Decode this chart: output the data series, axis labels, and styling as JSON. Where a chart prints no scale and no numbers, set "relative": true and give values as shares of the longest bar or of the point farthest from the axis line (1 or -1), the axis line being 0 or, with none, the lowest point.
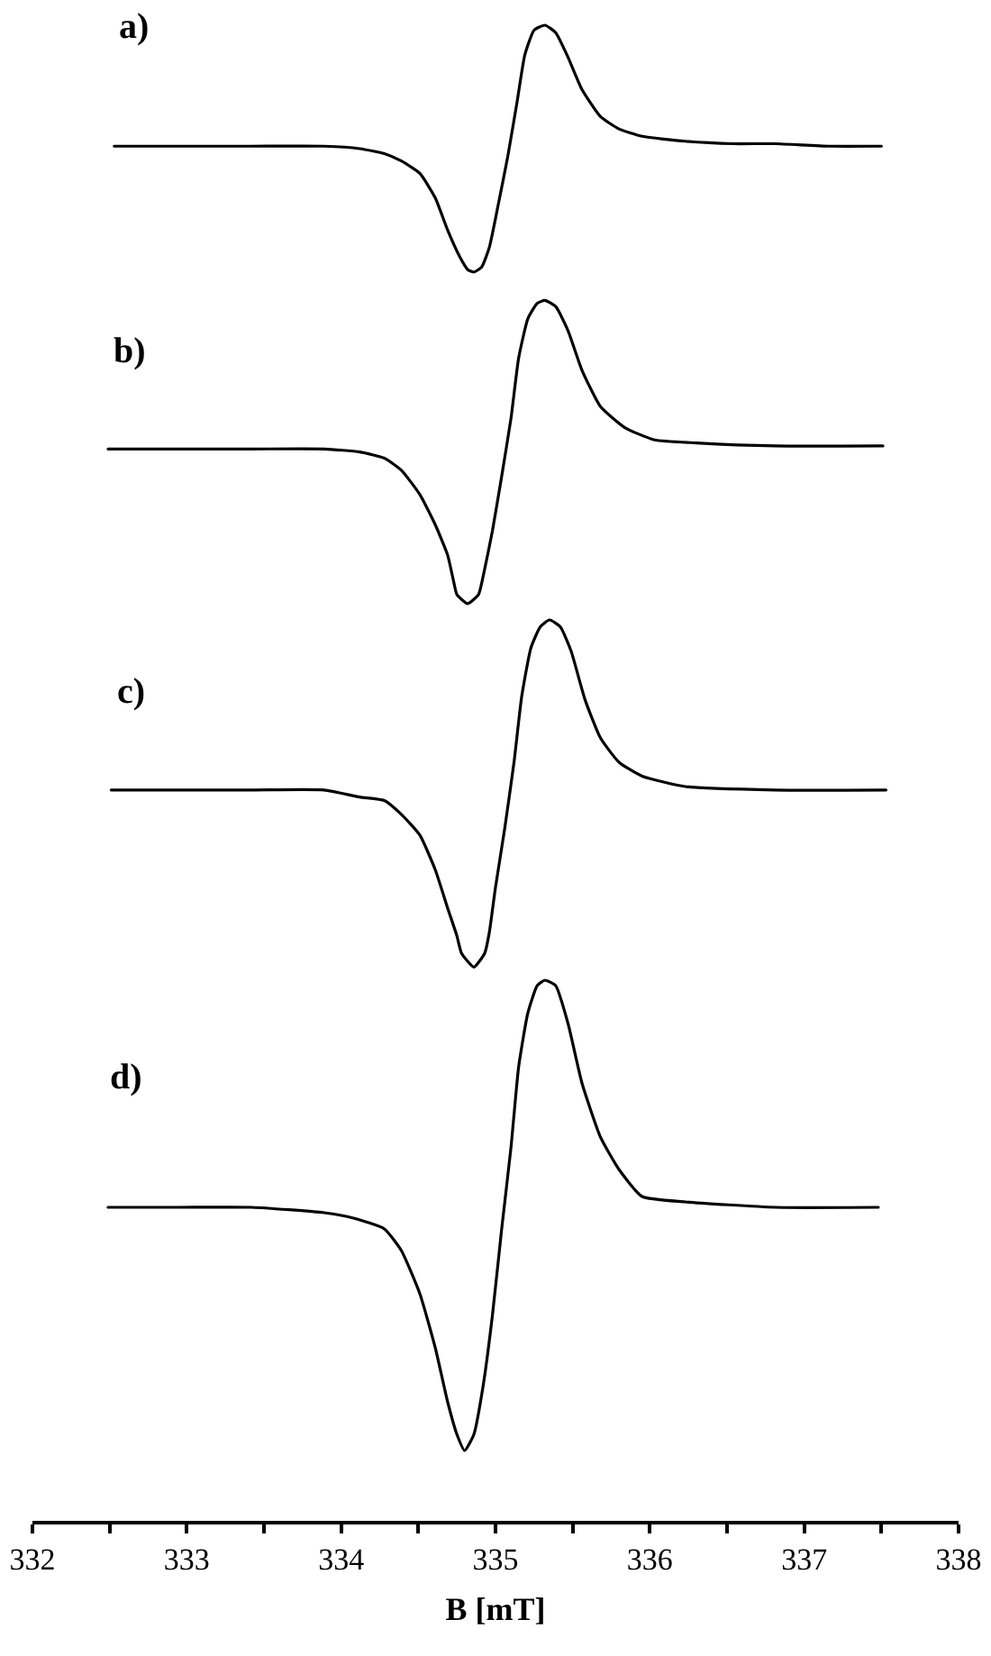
{
  "chart_data": [
    {
      "type": "line",
      "title": "a)",
      "relative": true,
      "xlim": [
        332,
        338
      ],
      "tick_labels": false,
      "x": [
        332.53,
        332.95,
        333.42,
        333.89,
        334.12,
        334.28,
        334.39,
        334.51,
        334.61,
        334.69,
        334.77,
        334.82,
        334.86,
        334.91,
        334.96,
        335.02,
        335.08,
        335.14,
        335.19,
        335.25,
        335.32,
        335.39,
        335.47,
        335.56,
        335.68,
        335.8,
        335.95,
        336.23,
        336.54,
        336.81,
        337.16,
        337.5
      ],
      "series": [
        {
          "color": "#000000",
          "values": [
            0.51,
            0.51,
            0.51,
            0.51,
            0.5,
            0.48,
            0.45,
            0.4,
            0.3,
            0.17,
            0.06,
            0.01,
            0,
            0.02,
            0.1,
            0.28,
            0.47,
            0.69,
            0.88,
            0.98,
            1,
            0.97,
            0.87,
            0.74,
            0.63,
            0.58,
            0.55,
            0.53,
            0.52,
            0.52,
            0.51,
            0.51
          ]
        }
      ]
    },
    {
      "type": "line",
      "title": "b)",
      "relative": true,
      "xlim": [
        332,
        338
      ],
      "tick_labels": false,
      "x": [
        332.49,
        332.95,
        333.42,
        333.89,
        334.12,
        334.28,
        334.39,
        334.51,
        334.61,
        334.69,
        334.73,
        334.75,
        334.82,
        334.89,
        334.92,
        334.98,
        335.04,
        335.1,
        335.15,
        335.21,
        335.27,
        335.32,
        335.39,
        335.47,
        335.56,
        335.68,
        335.84,
        336.03,
        336.3,
        336.81,
        337.51
      ],
      "series": [
        {
          "color": "#000000",
          "values": [
            0.51,
            0.51,
            0.51,
            0.51,
            0.5,
            0.48,
            0.44,
            0.36,
            0.26,
            0.16,
            0.07,
            0.03,
            0,
            0.03,
            0.09,
            0.24,
            0.42,
            0.61,
            0.81,
            0.94,
            0.99,
            1,
            0.98,
            0.9,
            0.77,
            0.65,
            0.58,
            0.54,
            0.53,
            0.52,
            0.52
          ]
        }
      ]
    },
    {
      "type": "line",
      "title": "c)",
      "relative": true,
      "xlim": [
        332,
        338
      ],
      "tick_labels": false,
      "x": [
        332.51,
        332.95,
        333.42,
        333.89,
        334.12,
        334.28,
        334.39,
        334.51,
        334.61,
        334.69,
        334.75,
        334.78,
        334.86,
        334.93,
        334.96,
        335.0,
        335.06,
        335.12,
        335.17,
        335.23,
        335.29,
        335.35,
        335.42,
        335.49,
        335.58,
        335.68,
        335.8,
        335.95,
        336.23,
        336.81,
        337.53
      ],
      "series": [
        {
          "color": "#000000",
          "values": [
            0.51,
            0.51,
            0.51,
            0.51,
            0.49,
            0.48,
            0.44,
            0.38,
            0.28,
            0.17,
            0.09,
            0.04,
            0,
            0.04,
            0.1,
            0.23,
            0.4,
            0.59,
            0.78,
            0.92,
            0.98,
            1,
            0.98,
            0.91,
            0.77,
            0.66,
            0.59,
            0.55,
            0.52,
            0.51,
            0.51
          ]
        }
      ]
    },
    {
      "type": "line",
      "title": "d)",
      "relative": true,
      "xlim": [
        332,
        338
      ],
      "xlabel": "B [mT]",
      "tick_labels": "x",
      "xticks": [
        332,
        {
          "value": 332.5,
          "label": null
        },
        333,
        {
          "value": 333.5,
          "label": null
        },
        334,
        {
          "value": 334.5,
          "label": null
        },
        335,
        {
          "value": 335.5,
          "label": null
        },
        336,
        {
          "value": 336.5,
          "label": null
        },
        337,
        {
          "value": 337.5,
          "label": null
        },
        338
      ],
      "x": [
        332.49,
        332.95,
        333.42,
        333.89,
        334.08,
        334.28,
        334.39,
        334.51,
        334.61,
        334.69,
        334.75,
        334.8,
        334.86,
        334.92,
        334.98,
        335.04,
        335.1,
        335.15,
        335.21,
        335.27,
        335.32,
        335.39,
        335.47,
        335.56,
        335.68,
        335.8,
        335.95,
        336.23,
        336.81,
        337.48
      ],
      "series": [
        {
          "color": "#000000",
          "values": [
            0.58,
            0.58,
            0.58,
            0.57,
            0.56,
            0.54,
            0.5,
            0.42,
            0.32,
            0.22,
            0.16,
            0.13,
            0.16,
            0.25,
            0.38,
            0.54,
            0.69,
            0.84,
            0.94,
            0.99,
            1,
            0.99,
            0.92,
            0.81,
            0.71,
            0.65,
            0.6,
            0.59,
            0.58,
            0.58
          ]
        }
      ]
    }
  ]
}
